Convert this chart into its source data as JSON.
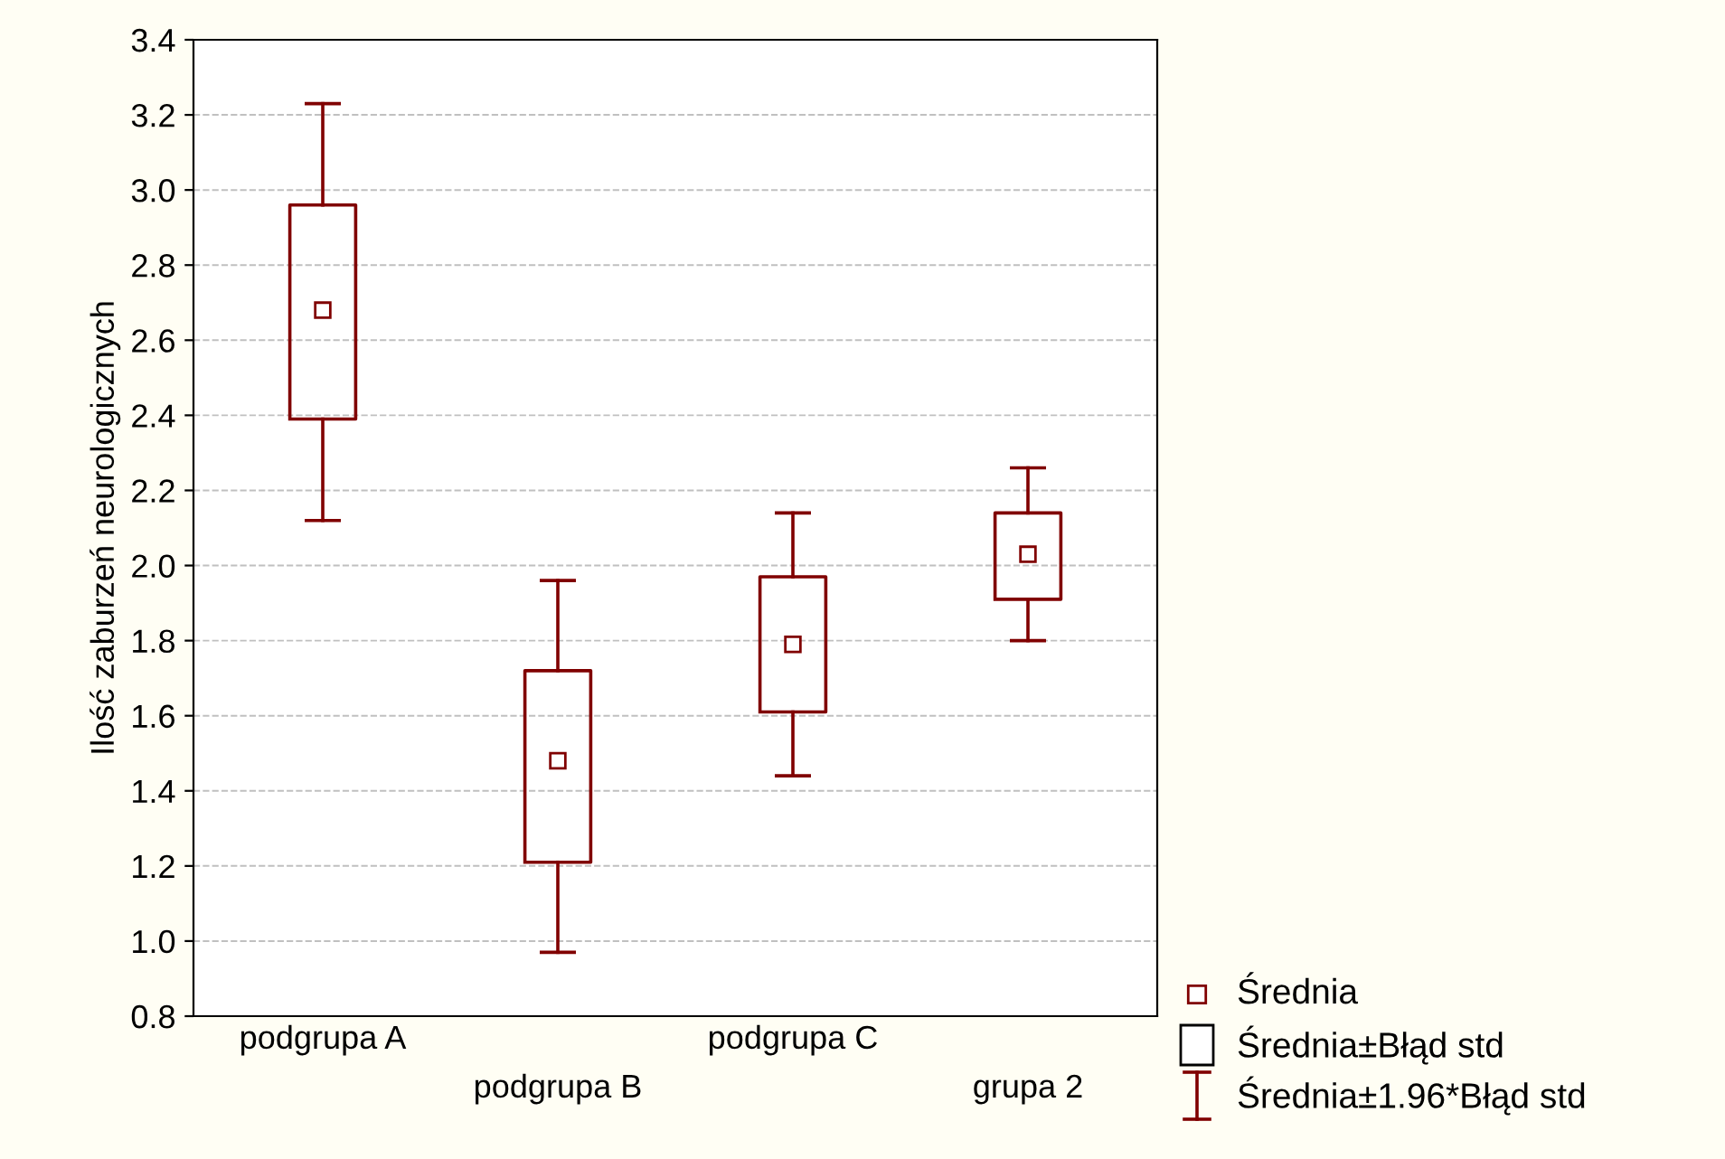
{
  "chart_data": {
    "type": "box",
    "ylabel": "Ilość zaburzeń neurologicznych",
    "categories": [
      "podgrupa A",
      "podgrupa B",
      "podgrupa C",
      "grupa 2"
    ],
    "boxes": [
      {
        "low": 2.12,
        "q1": 2.39,
        "median": 2.68,
        "q3": 2.96,
        "high": 3.23
      },
      {
        "low": 0.97,
        "q1": 1.21,
        "median": 1.48,
        "q3": 1.72,
        "high": 1.96
      },
      {
        "low": 1.44,
        "q1": 1.61,
        "median": 1.79,
        "q3": 1.97,
        "high": 2.14
      },
      {
        "low": 1.8,
        "q1": 1.91,
        "median": 2.03,
        "q3": 2.14,
        "high": 2.26
      }
    ],
    "color": "#800000",
    "marker": "square",
    "ylim": [
      0.8,
      3.4
    ],
    "yticks": [
      {
        "value": 0.8,
        "label": "0.8"
      },
      {
        "value": 1.0,
        "label": "1.0"
      },
      {
        "value": 1.2,
        "label": "1.2"
      },
      {
        "value": 1.4,
        "label": "1.4"
      },
      {
        "value": 1.6,
        "label": "1.6"
      },
      {
        "value": 1.8,
        "label": "1.8"
      },
      {
        "value": 2.0,
        "label": "2.0"
      },
      {
        "value": 2.2,
        "label": "2.2"
      },
      {
        "value": 2.4,
        "label": "2.4"
      },
      {
        "value": 2.6,
        "label": "2.6"
      },
      {
        "value": 2.8,
        "label": "2.8"
      },
      {
        "value": 3.0,
        "label": "3.0"
      },
      {
        "value": 3.2,
        "label": "3.2"
      },
      {
        "value": 3.4,
        "label": "3.4"
      }
    ],
    "grid": "y",
    "annotations": [
      "Średnia",
      "Średnia±Błąd std",
      "Średnia±1.96*Błąd std"
    ]
  }
}
